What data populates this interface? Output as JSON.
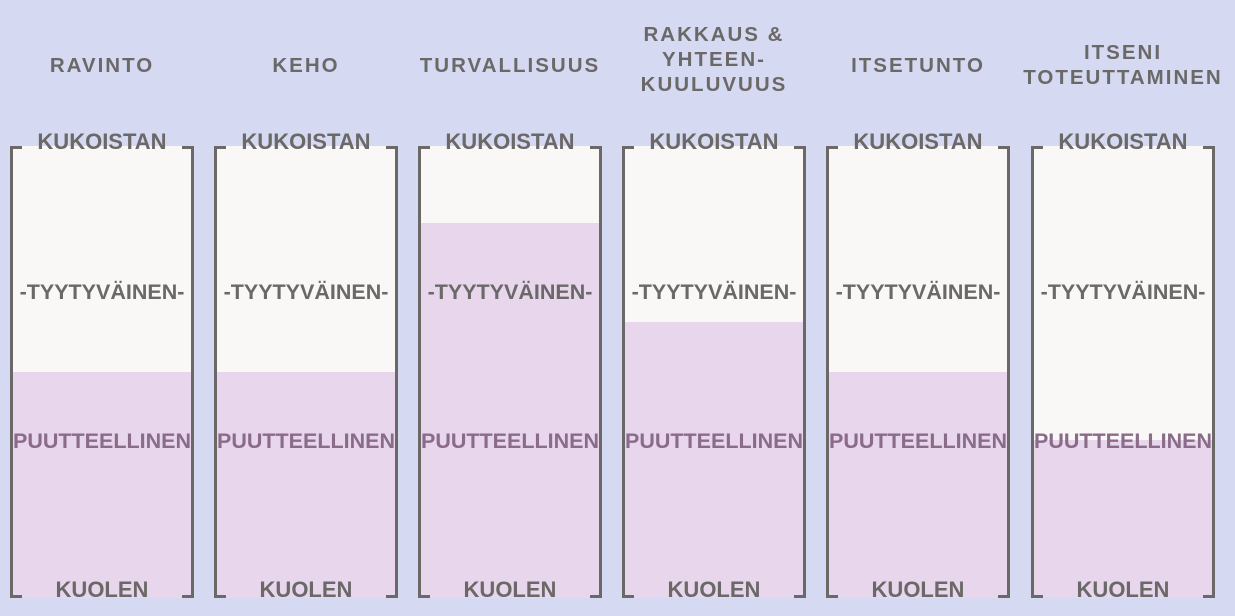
{
  "scale": {
    "top_label": "KUKOISTAN",
    "mid_label": "-TYYTYVÄINEN-",
    "low_label": "PUUTTEELLINEN",
    "bottom_label": "KUOLEN"
  },
  "colors": {
    "background": "#d6d9f2",
    "tube_empty": "#f9f8f6",
    "tube_fill": "#e8d6ec",
    "outline": "#6b6868",
    "low_text": "#8a6c8a"
  },
  "columns": [
    {
      "title": "RAVINTO",
      "fill_level": 0.5
    },
    {
      "title": "KEHO",
      "fill_level": 0.5
    },
    {
      "title": "TURVALLISUUS",
      "fill_level": 0.83
    },
    {
      "title": "RAKKAUS &\nYHTEEN-\nKUULUVUUS",
      "fill_level": 0.61
    },
    {
      "title": "ITSETUNTO",
      "fill_level": 0.5
    },
    {
      "title": "ITSENI\nTOTEUTTAMINEN",
      "fill_level": 0.35
    }
  ]
}
